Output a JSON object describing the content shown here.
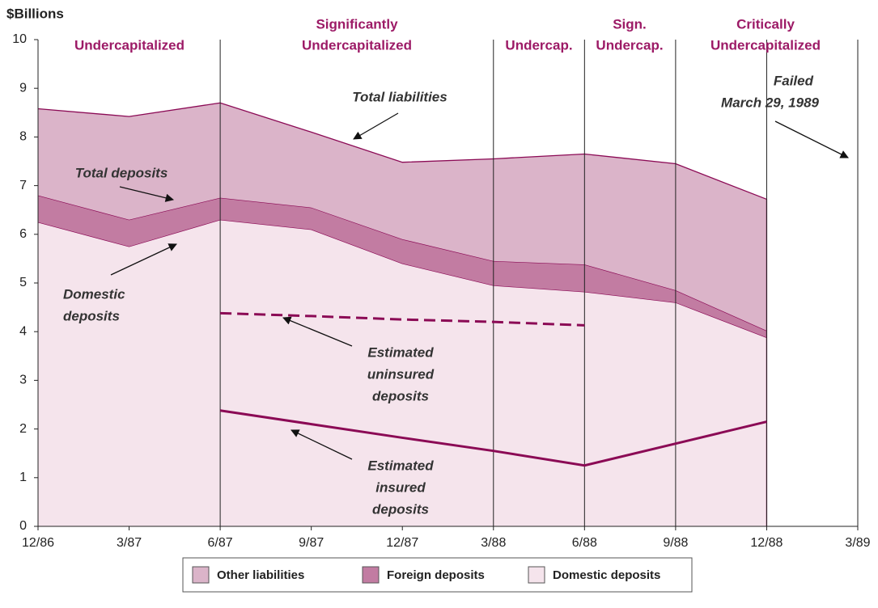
{
  "chart_data": {
    "type": "stacked_area",
    "y_label": "$Billions",
    "categories": [
      "12/86",
      "3/87",
      "6/87",
      "9/87",
      "12/87",
      "3/88",
      "6/88",
      "9/88",
      "12/88",
      "3/89"
    ],
    "ylim": [
      0,
      10
    ],
    "yticks": [
      0,
      1,
      2,
      3,
      4,
      5,
      6,
      7,
      8,
      9,
      10
    ],
    "series": [
      {
        "name": "Domestic deposits",
        "color": "#f5e4ec",
        "values": [
          6.25,
          5.75,
          6.3,
          6.1,
          5.4,
          4.95,
          4.82,
          4.6,
          3.88,
          null
        ]
      },
      {
        "name": "Foreign deposits",
        "color": "#c27ca2",
        "values": [
          0.55,
          0.55,
          0.45,
          0.45,
          0.5,
          0.5,
          0.56,
          0.25,
          0.14,
          null
        ]
      },
      {
        "name": "Other liabilities",
        "color": "#dbb4c9",
        "values": [
          1.78,
          2.12,
          1.95,
          1.55,
          1.58,
          2.1,
          2.27,
          2.6,
          2.7,
          null
        ]
      }
    ],
    "lines": [
      {
        "name": "Estimated uninsured deposits",
        "color": "#8b0a55",
        "dashed": true,
        "values": [
          null,
          null,
          4.38,
          4.32,
          4.25,
          4.2,
          4.13,
          null,
          null,
          null
        ]
      },
      {
        "name": "Estimated insured deposits",
        "color": "#8b0a55",
        "dashed": false,
        "values": [
          null,
          null,
          2.38,
          2.1,
          1.82,
          1.55,
          1.25,
          1.7,
          2.15,
          null
        ]
      }
    ],
    "regions": [
      {
        "label": [
          "Undercapitalized"
        ]
      },
      {
        "label": [
          "Significantly",
          "Undercapitalized"
        ]
      },
      {
        "label": [
          "Undercap."
        ]
      },
      {
        "label": [
          "Sign.",
          "Undercap."
        ]
      },
      {
        "label": [
          "Critically",
          "Undercapitalized"
        ]
      }
    ],
    "annotations": [
      {
        "text": [
          "Total liabilities"
        ]
      },
      {
        "text": [
          "Total deposits"
        ]
      },
      {
        "text": [
          "Domestic",
          "deposits"
        ]
      },
      {
        "text": [
          "Estimated",
          "uninsured",
          "deposits"
        ]
      },
      {
        "text": [
          "Estimated",
          "insured",
          "deposits"
        ]
      },
      {
        "text": [
          "Failed",
          "March 29, 1989"
        ]
      }
    ]
  }
}
